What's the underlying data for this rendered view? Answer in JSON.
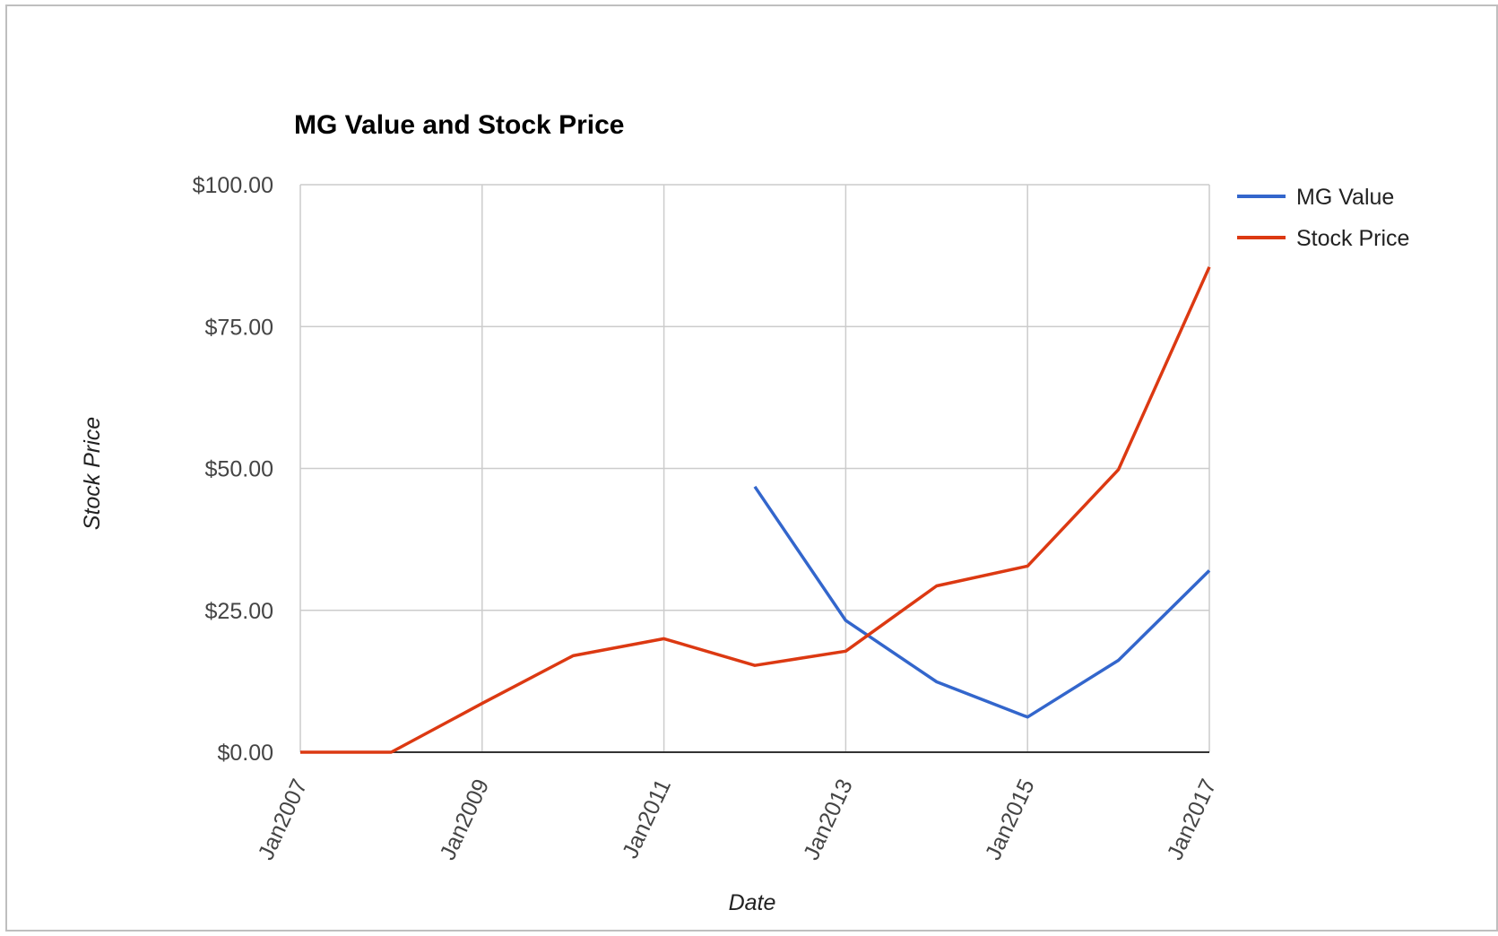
{
  "colors": {
    "grid": "#cccccc",
    "baseline": "#333333",
    "mg_value": "#3366cc",
    "stock_price": "#dc3912"
  },
  "chart_data": {
    "type": "line",
    "title": "MG Value and Stock Price",
    "xlabel": "Date",
    "ylabel": "Stock Price",
    "ylim": [
      0,
      100
    ],
    "xlim": [
      "2007-01",
      "2017-01"
    ],
    "y_ticks": [
      0,
      25,
      50,
      75,
      100
    ],
    "y_tick_labels": [
      "$0.00",
      "$25.00",
      "$50.00",
      "$75.00",
      "$100.00"
    ],
    "x_ticks": [
      "2007-01",
      "2009-01",
      "2011-01",
      "2013-01",
      "2015-01",
      "2017-01"
    ],
    "x_tick_labels": [
      "Jan2007",
      "Jan2009",
      "Jan2011",
      "Jan2013",
      "Jan2015",
      "Jan2017"
    ],
    "grid": true,
    "legend": "right",
    "series": [
      {
        "name": "MG Value",
        "color": "#3366cc",
        "x": [
          "2012-01",
          "2013-01",
          "2014-01",
          "2015-01",
          "2016-01",
          "2017-01"
        ],
        "values": [
          46.8,
          23.2,
          12.4,
          6.2,
          16.2,
          32.0
        ]
      },
      {
        "name": "Stock Price",
        "color": "#dc3912",
        "x": [
          "2007-01",
          "2008-01",
          "2009-01",
          "2010-01",
          "2011-01",
          "2012-01",
          "2013-01",
          "2014-01",
          "2015-01",
          "2016-01",
          "2017-01"
        ],
        "values": [
          0.0,
          0.0,
          8.6,
          17.0,
          20.0,
          15.3,
          17.8,
          29.3,
          32.8,
          49.8,
          85.5
        ]
      }
    ]
  }
}
